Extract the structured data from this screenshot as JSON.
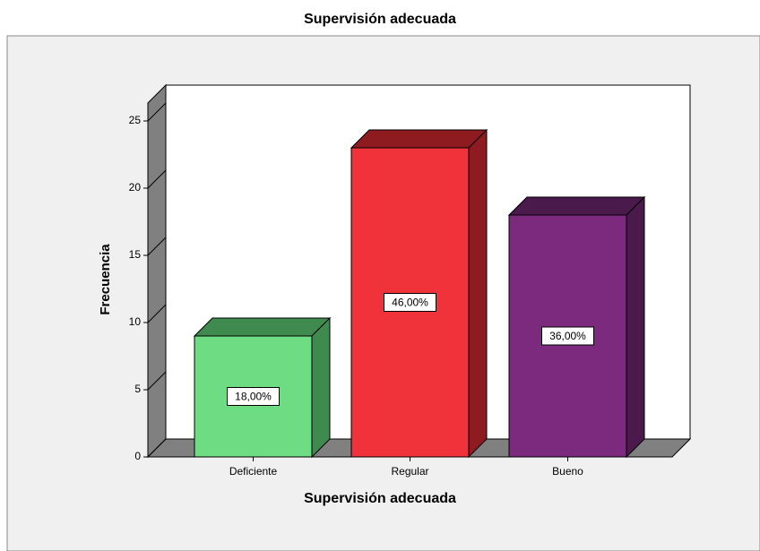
{
  "chart_data": {
    "type": "bar3d",
    "title": "Supervisión adecuada",
    "x_label": "Supervisión adecuada",
    "y_label": "Frecuencia",
    "categories": [
      "Deficiente",
      "Regular",
      "Bueno"
    ],
    "values": [
      9,
      23,
      18
    ],
    "percent": [
      18,
      46,
      36
    ],
    "percent_labels": [
      "18,00%",
      "46,00%",
      "36,00%"
    ],
    "colors": [
      "#6edc82",
      "#f0333a",
      "#7b2a7e"
    ],
    "side_colors": [
      "#3f8a4f",
      "#8e1b20",
      "#4a1a4c"
    ],
    "ylim": [
      0,
      25
    ],
    "yticks": [
      0,
      5,
      10,
      15,
      20,
      25
    ]
  }
}
